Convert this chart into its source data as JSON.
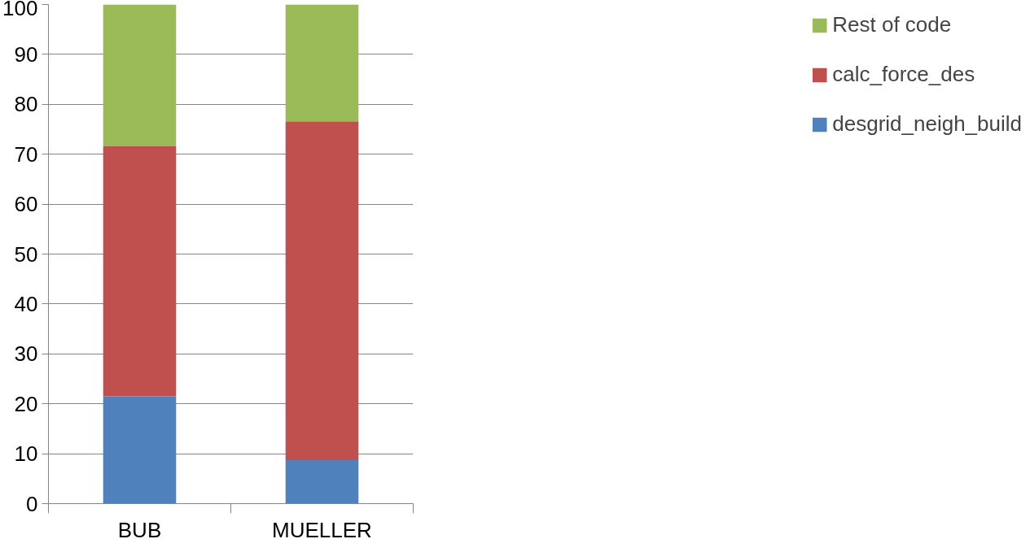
{
  "chart_data": {
    "type": "bar",
    "stacked": true,
    "categories": [
      "BUB",
      "MUELLER"
    ],
    "series": [
      {
        "name": "desgrid_neigh_build",
        "color": "#4f81bd",
        "values": [
          21.5,
          8.7
        ]
      },
      {
        "name": "calc_force_des",
        "color": "#c0504d",
        "values": [
          50.1,
          67.9
        ]
      },
      {
        "name": "Rest of code",
        "color": "#9bbb59",
        "values": [
          28.4,
          23.4
        ]
      }
    ],
    "ylim": [
      0,
      100
    ],
    "yticks": [
      0,
      10,
      20,
      30,
      40,
      50,
      60,
      70,
      80,
      90,
      100
    ],
    "grid": "y",
    "legend": "right"
  }
}
